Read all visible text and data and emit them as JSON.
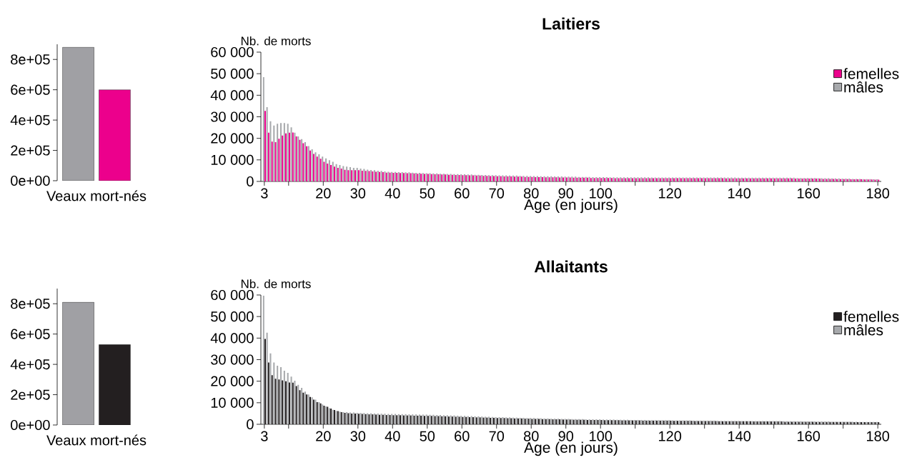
{
  "chart_data": [
    {
      "type": "bar",
      "categories": [
        "Veaux mort-nés"
      ],
      "ylim": [
        0,
        900000
      ],
      "yticks": [
        {
          "value": 0,
          "label": "0e+00"
        },
        {
          "value": 200000,
          "label": "2e+05"
        },
        {
          "value": 400000,
          "label": "4e+05"
        },
        {
          "value": 600000,
          "label": "6e+05"
        },
        {
          "value": 800000,
          "label": "8e+05"
        }
      ],
      "series": [
        {
          "color": "#ec008c",
          "values": [
            600000
          ]
        },
        {
          "color": "#a0a0a4",
          "values": [
            880000
          ]
        }
      ]
    },
    {
      "type": "bar",
      "title": "Laitiers",
      "xlabel": "Age (en jours)",
      "ylabel": "Nb. de morts",
      "legend": "top right",
      "xlim": [
        2,
        181
      ],
      "xticks": [
        3,
        {
          "value": 10,
          "label": null
        },
        20,
        30,
        40,
        50,
        60,
        70,
        80,
        90,
        100,
        {
          "value": 110,
          "label": null
        },
        120,
        {
          "value": 130,
          "label": null
        },
        140,
        {
          "value": 150,
          "label": null
        },
        160,
        {
          "value": 170,
          "label": null
        },
        180
      ],
      "ylim": [
        0,
        60000
      ],
      "yticks": [
        0,
        {
          "value": 10000,
          "label": "10 000"
        },
        {
          "value": 20000,
          "label": "20 000"
        },
        {
          "value": 30000,
          "label": "30 000"
        },
        {
          "value": 40000,
          "label": "40 000"
        },
        {
          "value": 50000,
          "label": "50 000"
        },
        {
          "value": 60000,
          "label": "60 000"
        }
      ],
      "x": [
        3,
        4,
        5,
        6,
        7,
        8,
        9,
        10,
        11,
        12,
        13,
        14,
        15,
        16,
        17,
        18,
        19,
        20,
        21,
        22,
        23,
        24,
        25,
        26,
        27,
        28,
        29,
        30,
        31,
        32,
        33,
        34,
        35,
        36,
        37,
        38,
        39,
        40,
        41,
        42,
        43,
        44,
        45,
        46,
        47,
        48,
        49,
        50,
        51,
        52,
        53,
        54,
        55,
        56,
        57,
        58,
        59,
        60,
        61,
        62,
        63,
        64,
        65,
        66,
        67,
        68,
        69,
        70,
        71,
        72,
        73,
        74,
        75,
        76,
        77,
        78,
        79,
        80,
        81,
        82,
        83,
        84,
        85,
        86,
        87,
        88,
        89,
        90,
        91,
        92,
        93,
        94,
        95,
        96,
        97,
        98,
        99,
        100,
        101,
        102,
        103,
        104,
        105,
        106,
        107,
        108,
        109,
        110,
        111,
        112,
        113,
        114,
        115,
        116,
        117,
        118,
        119,
        120,
        121,
        122,
        123,
        124,
        125,
        126,
        127,
        128,
        129,
        130,
        131,
        132,
        133,
        134,
        135,
        136,
        137,
        138,
        139,
        140,
        141,
        142,
        143,
        144,
        145,
        146,
        147,
        148,
        149,
        150,
        151,
        152,
        153,
        154,
        155,
        156,
        157,
        158,
        159,
        160,
        161,
        162,
        163,
        164,
        165,
        166,
        167,
        168,
        169,
        170,
        171,
        172,
        173,
        174,
        175,
        176,
        177,
        178,
        179,
        180
      ],
      "series": [
        {
          "name": "femelles",
          "color": "#ec008c",
          "values": [
            32700,
            22600,
            18500,
            18200,
            19800,
            21300,
            22300,
            22600,
            22700,
            20900,
            19300,
            17700,
            16300,
            14300,
            12800,
            11500,
            10500,
            9100,
            8300,
            7600,
            6900,
            6300,
            6000,
            5400,
            5200,
            5200,
            5200,
            5200,
            5000,
            4900,
            4800,
            4600,
            4500,
            4400,
            4300,
            4100,
            4100,
            4000,
            4000,
            3900,
            3900,
            3800,
            3800,
            3700,
            3600,
            3600,
            3500,
            3500,
            3400,
            3300,
            3300,
            3200,
            3200,
            3100,
            3100,
            3000,
            3000,
            2900,
            2900,
            2800,
            2800,
            2700,
            2700,
            2600,
            2600,
            2500,
            2500,
            2400,
            2400,
            2300,
            2300,
            2300,
            2200,
            2200,
            2200,
            2100,
            2100,
            2100,
            2000,
            2000,
            2000,
            1900,
            1900,
            1900,
            1900,
            1800,
            1800,
            1800,
            1800,
            1700,
            1700,
            1700,
            1700,
            1700,
            1600,
            1600,
            1600,
            1600,
            1600,
            1600,
            1600,
            1500,
            1500,
            1500,
            1500,
            1500,
            1500,
            1500,
            1500,
            1500,
            1500,
            1500,
            1500,
            1500,
            1500,
            1500,
            1500,
            1500,
            1500,
            1500,
            1500,
            1500,
            1500,
            1500,
            1500,
            1500,
            1500,
            1500,
            1500,
            1500,
            1500,
            1500,
            1500,
            1400,
            1400,
            1400,
            1400,
            1400,
            1400,
            1400,
            1400,
            1400,
            1400,
            1400,
            1400,
            1400,
            1400,
            1400,
            1400,
            1400,
            1400,
            1400,
            1400,
            1300,
            1300,
            1300,
            1300,
            1300,
            1300,
            1300,
            1300,
            1200,
            1200,
            1200,
            1200,
            1100,
            1100,
            1100,
            1100,
            1000,
            1000,
            1000,
            1000,
            900,
            900,
            900,
            800,
            800
          ]
        },
        {
          "name": "mâles",
          "color": "#a7a9ac",
          "values": [
            48400,
            34500,
            27900,
            25900,
            26800,
            27100,
            27100,
            26800,
            25100,
            22600,
            20900,
            19600,
            18200,
            16400,
            14900,
            13500,
            12600,
            11500,
            10700,
            9900,
            9100,
            8000,
            7600,
            7100,
            6900,
            6600,
            6300,
            6300,
            6000,
            5800,
            5500,
            5300,
            5200,
            5000,
            4900,
            4600,
            4500,
            4400,
            4400,
            4300,
            4300,
            4200,
            4200,
            4100,
            4000,
            4000,
            3900,
            3800,
            3800,
            3700,
            3700,
            3600,
            3600,
            3500,
            3500,
            3400,
            3400,
            3300,
            3300,
            3200,
            3200,
            3100,
            3100,
            3000,
            3000,
            2900,
            2900,
            2900,
            2800,
            2800,
            2800,
            2700,
            2700,
            2700,
            2600,
            2600,
            2600,
            2500,
            2500,
            2500,
            2400,
            2400,
            2400,
            2400,
            2300,
            2300,
            2300,
            2200,
            2200,
            2200,
            2200,
            2100,
            2100,
            2100,
            2100,
            2000,
            2000,
            2000,
            2000,
            2000,
            1900,
            1900,
            1900,
            1900,
            1900,
            1900,
            1900,
            1900,
            1900,
            1900,
            1900,
            1900,
            1800,
            1800,
            1800,
            1800,
            1800,
            1800,
            1800,
            1800,
            1800,
            1800,
            1800,
            1800,
            1800,
            1800,
            1800,
            1800,
            1800,
            1800,
            1800,
            1800,
            1800,
            1800,
            1800,
            1800,
            1800,
            1700,
            1700,
            1700,
            1700,
            1700,
            1700,
            1700,
            1700,
            1700,
            1700,
            1700,
            1700,
            1700,
            1700,
            1700,
            1700,
            1700,
            1600,
            1600,
            1600,
            1600,
            1600,
            1600,
            1500,
            1500,
            1500,
            1500,
            1400,
            1400,
            1400,
            1300,
            1300,
            1300,
            1200,
            1200,
            1200,
            1100,
            1100,
            1100,
            1000,
            1000
          ]
        }
      ]
    },
    {
      "type": "bar",
      "categories": [
        "Veaux mort-nés"
      ],
      "ylim": [
        0,
        900000
      ],
      "yticks": [
        {
          "value": 0,
          "label": "0e+00"
        },
        {
          "value": 200000,
          "label": "2e+05"
        },
        {
          "value": 400000,
          "label": "4e+05"
        },
        {
          "value": 600000,
          "label": "6e+05"
        },
        {
          "value": 800000,
          "label": "8e+05"
        }
      ],
      "series": [
        {
          "color": "#231f20",
          "values": [
            530000
          ]
        },
        {
          "color": "#a0a0a4",
          "values": [
            810000
          ]
        }
      ]
    },
    {
      "type": "bar",
      "title": "Allaitants",
      "xlabel": "Age (en jours)",
      "ylabel": "Nb. de morts",
      "legend": "top right",
      "xlim": [
        2,
        181
      ],
      "xticks": [
        3,
        {
          "value": 10,
          "label": null
        },
        20,
        30,
        40,
        50,
        60,
        70,
        80,
        90,
        100,
        {
          "value": 110,
          "label": null
        },
        120,
        {
          "value": 130,
          "label": null
        },
        140,
        {
          "value": 150,
          "label": null
        },
        160,
        {
          "value": 170,
          "label": null
        },
        180
      ],
      "ylim": [
        0,
        60000
      ],
      "yticks": [
        0,
        {
          "value": 10000,
          "label": "10 000"
        },
        {
          "value": 20000,
          "label": "20 000"
        },
        {
          "value": 30000,
          "label": "30 000"
        },
        {
          "value": 40000,
          "label": "40 000"
        },
        {
          "value": 50000,
          "label": "50 000"
        },
        {
          "value": 60000,
          "label": "60 000"
        }
      ],
      "x": [
        3,
        4,
        5,
        6,
        7,
        8,
        9,
        10,
        11,
        12,
        13,
        14,
        15,
        16,
        17,
        18,
        19,
        20,
        21,
        22,
        23,
        24,
        25,
        26,
        27,
        28,
        29,
        30,
        31,
        32,
        33,
        34,
        35,
        36,
        37,
        38,
        39,
        40,
        41,
        42,
        43,
        44,
        45,
        46,
        47,
        48,
        49,
        50,
        51,
        52,
        53,
        54,
        55,
        56,
        57,
        58,
        59,
        60,
        61,
        62,
        63,
        64,
        65,
        66,
        67,
        68,
        69,
        70,
        71,
        72,
        73,
        74,
        75,
        76,
        77,
        78,
        79,
        80,
        81,
        82,
        83,
        84,
        85,
        86,
        87,
        88,
        89,
        90,
        91,
        92,
        93,
        94,
        95,
        96,
        97,
        98,
        99,
        100,
        101,
        102,
        103,
        104,
        105,
        106,
        107,
        108,
        109,
        110,
        111,
        112,
        113,
        114,
        115,
        116,
        117,
        118,
        119,
        120,
        121,
        122,
        123,
        124,
        125,
        126,
        127,
        128,
        129,
        130,
        131,
        132,
        133,
        134,
        135,
        136,
        137,
        138,
        139,
        140,
        141,
        142,
        143,
        144,
        145,
        146,
        147,
        148,
        149,
        150,
        151,
        152,
        153,
        154,
        155,
        156,
        157,
        158,
        159,
        160,
        161,
        162,
        163,
        164,
        165,
        166,
        167,
        168,
        169,
        170,
        171,
        172,
        173,
        174,
        175,
        176,
        177,
        178,
        179,
        180
      ],
      "series": [
        {
          "name": "femelles",
          "color": "#231f20",
          "values": [
            39600,
            28700,
            22800,
            21100,
            20800,
            20400,
            20000,
            19400,
            19300,
            17700,
            15800,
            14700,
            13800,
            12700,
            11400,
            10300,
            9700,
            8600,
            8100,
            7300,
            6600,
            6100,
            5600,
            5300,
            5100,
            5000,
            5000,
            4900,
            4800,
            4700,
            4600,
            4600,
            4500,
            4400,
            4400,
            4300,
            4300,
            4200,
            4200,
            4200,
            4100,
            4100,
            4100,
            4000,
            4000,
            4000,
            3900,
            3900,
            3900,
            3800,
            3800,
            3700,
            3700,
            3600,
            3600,
            3500,
            3500,
            3400,
            3400,
            3300,
            3300,
            3200,
            3200,
            3100,
            3100,
            3000,
            3000,
            2900,
            2900,
            2900,
            2800,
            2800,
            2700,
            2700,
            2700,
            2600,
            2600,
            2500,
            2500,
            2500,
            2400,
            2400,
            2400,
            2300,
            2300,
            2300,
            2200,
            2200,
            2200,
            2100,
            2100,
            2100,
            2100,
            2000,
            2000,
            2000,
            2000,
            2000,
            1900,
            1900,
            1900,
            1900,
            1900,
            1800,
            1800,
            1800,
            1800,
            1800,
            1800,
            1700,
            1700,
            1700,
            1700,
            1700,
            1700,
            1700,
            1700,
            1700,
            1600,
            1600,
            1600,
            1600,
            1600,
            1600,
            1500,
            1500,
            1500,
            1500,
            1500,
            1500,
            1500,
            1400,
            1400,
            1400,
            1400,
            1400,
            1400,
            1400,
            1400,
            1400,
            1400,
            1300,
            1300,
            1300,
            1300,
            1300,
            1300,
            1300,
            1300,
            1300,
            1200,
            1200,
            1200,
            1200,
            1200,
            1200,
            1200,
            1200,
            1200,
            1100,
            1100,
            1100,
            1100,
            1100,
            1100,
            1100,
            1100,
            1100,
            1100,
            1100,
            1000,
            1000,
            1000,
            1000,
            1000,
            1000,
            1000,
            1000
          ]
        },
        {
          "name": "mâles",
          "color": "#a7a9ac",
          "values": [
            59700,
            42500,
            32900,
            28700,
            27200,
            26500,
            24900,
            23900,
            22100,
            20200,
            18300,
            16900,
            15200,
            13800,
            12500,
            11400,
            10300,
            9200,
            8300,
            7500,
            6700,
            6200,
            5900,
            5600,
            5600,
            5500,
            5500,
            5300,
            5200,
            5200,
            5100,
            5100,
            5000,
            5000,
            4900,
            4900,
            4800,
            4800,
            4800,
            4700,
            4700,
            4700,
            4600,
            4600,
            4600,
            4500,
            4500,
            4500,
            4400,
            4400,
            4300,
            4300,
            4200,
            4200,
            4100,
            4100,
            4000,
            3900,
            3900,
            3800,
            3800,
            3700,
            3700,
            3600,
            3500,
            3500,
            3400,
            3300,
            3300,
            3300,
            3200,
            3200,
            3100,
            3100,
            3000,
            3000,
            2900,
            2900,
            2900,
            2800,
            2800,
            2700,
            2700,
            2600,
            2600,
            2600,
            2500,
            2500,
            2500,
            2400,
            2400,
            2400,
            2400,
            2300,
            2300,
            2300,
            2300,
            2300,
            2200,
            2200,
            2200,
            2200,
            2100,
            2100,
            2100,
            2100,
            2000,
            2000,
            2000,
            2000,
            2000,
            1900,
            1900,
            1900,
            1900,
            1900,
            1900,
            1900,
            1800,
            1800,
            1800,
            1800,
            1800,
            1800,
            1700,
            1700,
            1700,
            1700,
            1700,
            1700,
            1700,
            1600,
            1600,
            1600,
            1600,
            1600,
            1600,
            1600,
            1500,
            1500,
            1500,
            1500,
            1500,
            1500,
            1500,
            1500,
            1500,
            1500,
            1500,
            1500,
            1400,
            1400,
            1400,
            1400,
            1400,
            1400,
            1300,
            1300,
            1300,
            1300,
            1300,
            1300,
            1300,
            1300,
            1200,
            1200,
            1200,
            1200,
            1200,
            1200,
            1200,
            1200,
            1100,
            1100,
            1100,
            1100,
            1100,
            1100
          ]
        }
      ]
    }
  ]
}
